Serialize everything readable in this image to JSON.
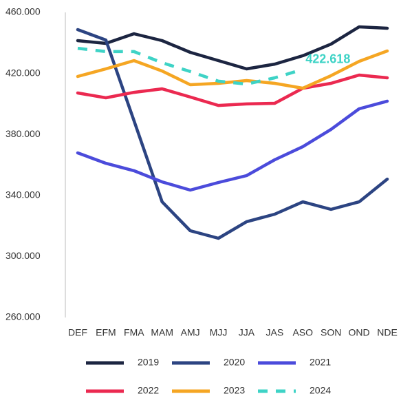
{
  "chart_data": {
    "type": "line",
    "categories": [
      "DEF",
      "EFM",
      "FMA",
      "MAM",
      "AMJ",
      "MJJ",
      "JJA",
      "JAS",
      "ASO",
      "SON",
      "OND",
      "NDE"
    ],
    "series": [
      {
        "name": "2019",
        "color": "#1c2541",
        "values": [
          441500,
          439700,
          446000,
          441500,
          433800,
          428400,
          423000,
          426100,
          431600,
          439200,
          450500,
          449600
        ]
      },
      {
        "name": "2020",
        "color": "#2c4482",
        "values": [
          448700,
          441900,
          389000,
          335800,
          316900,
          311900,
          322800,
          327700,
          335800,
          330900,
          335800,
          350700
        ]
      },
      {
        "name": "2021",
        "color": "#4b4bdb",
        "values": [
          367900,
          361100,
          356200,
          348900,
          343500,
          348500,
          353000,
          363400,
          372000,
          383300,
          396800,
          401800
        ]
      },
      {
        "name": "2022",
        "color": "#eb2950",
        "values": [
          407200,
          404000,
          407600,
          409900,
          404500,
          399000,
          400000,
          400400,
          410300,
          413500,
          418900,
          417100
        ]
      },
      {
        "name": "2023",
        "color": "#f5a623",
        "values": [
          418000,
          423000,
          428400,
          421600,
          412600,
          413500,
          415300,
          413500,
          410300,
          418500,
          427900,
          434700
        ]
      },
      {
        "name": "2024",
        "color": "#3ed3c6",
        "dashed": true,
        "values": [
          436500,
          434300,
          434300,
          427000,
          421200,
          414900,
          413000,
          417100,
          422618,
          null,
          null,
          null
        ],
        "value_labels": [
          null,
          null,
          null,
          null,
          null,
          null,
          null,
          null,
          "422.618",
          null,
          null,
          null
        ]
      }
    ],
    "ylim": [
      260000,
      460000
    ],
    "yticks": [
      {
        "value": 260000,
        "label": "260.000"
      },
      {
        "value": 300000,
        "label": "300.000"
      },
      {
        "value": 340000,
        "label": "340.000"
      },
      {
        "value": 380000,
        "label": "380.000"
      },
      {
        "value": 420000,
        "label": "420.000"
      },
      {
        "value": 460000,
        "label": "460.000"
      }
    ],
    "grid": false
  }
}
